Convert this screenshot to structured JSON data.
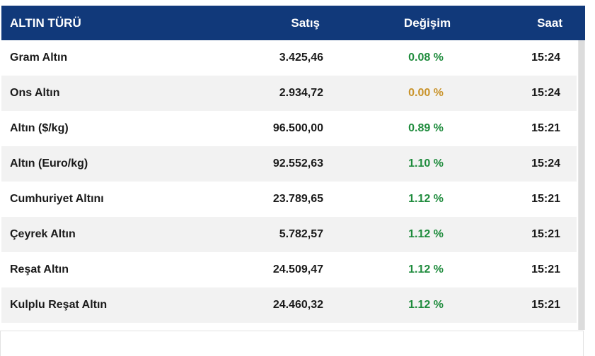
{
  "table": {
    "headers": {
      "name": "ALTIN TÜRÜ",
      "sale": "Satış",
      "change": "Değişim",
      "time": "Saat"
    },
    "rows": [
      {
        "name": "Gram Altın",
        "sale": "3.425,46",
        "change": "0.08 %",
        "time": "15:24",
        "trend": "up"
      },
      {
        "name": "Ons Altın",
        "sale": "2.934,72",
        "change": "0.00 %",
        "time": "15:24",
        "trend": "flat"
      },
      {
        "name": "Altın ($/kg)",
        "sale": "96.500,00",
        "change": "0.89 %",
        "time": "15:21",
        "trend": "up"
      },
      {
        "name": "Altın (Euro/kg)",
        "sale": "92.552,63",
        "change": "1.10 %",
        "time": "15:24",
        "trend": "up"
      },
      {
        "name": "Cumhuriyet Altını",
        "sale": "23.789,65",
        "change": "1.12 %",
        "time": "15:21",
        "trend": "up"
      },
      {
        "name": "Çeyrek Altın",
        "sale": "5.782,57",
        "change": "1.12 %",
        "time": "15:21",
        "trend": "up"
      },
      {
        "name": "Reşat Altın",
        "sale": "24.509,47",
        "change": "1.12 %",
        "time": "15:21",
        "trend": "up"
      },
      {
        "name": "Kulplu Reşat Altın",
        "sale": "24.460,32",
        "change": "1.12 %",
        "time": "15:21",
        "trend": "up"
      }
    ]
  },
  "colors": {
    "header_bg": "#11397a",
    "positive": "#1e8b3c",
    "neutral": "#c9932a"
  }
}
